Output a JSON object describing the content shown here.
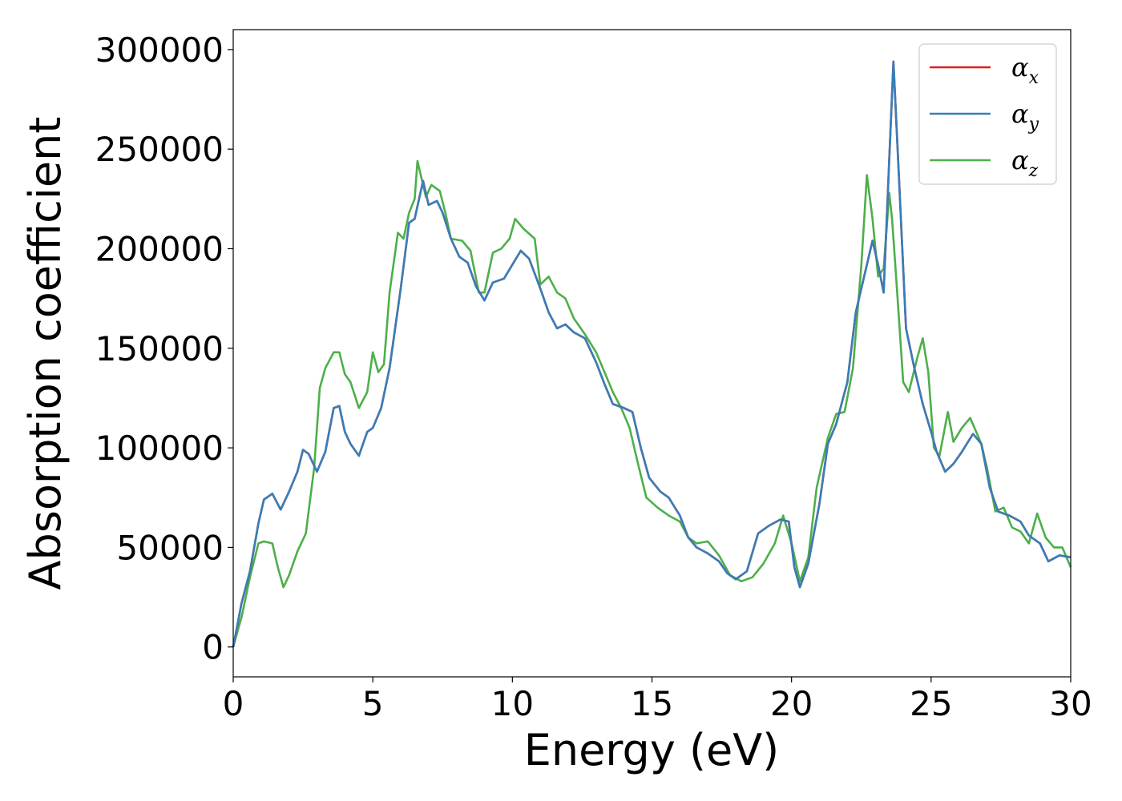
{
  "chart_data": {
    "type": "line",
    "title": "",
    "xlabel": "Energy (eV)",
    "ylabel": "Absorption coefficient",
    "xlim": [
      0,
      30
    ],
    "ylim": [
      -15000,
      310000
    ],
    "xticks": [
      0,
      5,
      10,
      15,
      20,
      25,
      30
    ],
    "yticks": [
      0,
      50000,
      100000,
      150000,
      200000,
      250000,
      300000
    ],
    "grid": false,
    "legend_position": "top-right",
    "series": [
      {
        "name": "α",
        "subscript": "x",
        "color": "#e41a1c",
        "points": [
          [
            0,
            0
          ],
          [
            0.3,
            22000
          ],
          [
            0.6,
            38000
          ],
          [
            0.9,
            62000
          ],
          [
            1.1,
            74000
          ],
          [
            1.4,
            77000
          ],
          [
            1.7,
            69000
          ],
          [
            2.0,
            78000
          ],
          [
            2.3,
            88000
          ],
          [
            2.5,
            99000
          ],
          [
            2.7,
            97000
          ],
          [
            3.0,
            88000
          ],
          [
            3.3,
            98000
          ],
          [
            3.6,
            120000
          ],
          [
            3.8,
            121000
          ],
          [
            4.0,
            108000
          ],
          [
            4.2,
            102000
          ],
          [
            4.5,
            96000
          ],
          [
            4.8,
            108000
          ],
          [
            5.0,
            110000
          ],
          [
            5.3,
            120000
          ],
          [
            5.6,
            140000
          ],
          [
            6.0,
            180000
          ],
          [
            6.3,
            213000
          ],
          [
            6.5,
            215000
          ],
          [
            6.8,
            234000
          ],
          [
            7.0,
            222000
          ],
          [
            7.3,
            224000
          ],
          [
            7.5,
            218000
          ],
          [
            7.8,
            205000
          ],
          [
            8.1,
            196000
          ],
          [
            8.4,
            193000
          ],
          [
            8.7,
            181000
          ],
          [
            9.0,
            174000
          ],
          [
            9.3,
            183000
          ],
          [
            9.7,
            185000
          ],
          [
            10.0,
            192000
          ],
          [
            10.3,
            199000
          ],
          [
            10.6,
            195000
          ],
          [
            11.0,
            180000
          ],
          [
            11.3,
            168000
          ],
          [
            11.6,
            160000
          ],
          [
            11.9,
            162000
          ],
          [
            12.2,
            158000
          ],
          [
            12.6,
            155000
          ],
          [
            13.0,
            143000
          ],
          [
            13.3,
            132000
          ],
          [
            13.6,
            122000
          ],
          [
            14.0,
            120000
          ],
          [
            14.3,
            118000
          ],
          [
            14.6,
            100000
          ],
          [
            14.9,
            85000
          ],
          [
            15.3,
            78000
          ],
          [
            15.6,
            75000
          ],
          [
            16.0,
            66000
          ],
          [
            16.3,
            55000
          ],
          [
            16.6,
            50000
          ],
          [
            17.0,
            47000
          ],
          [
            17.4,
            43000
          ],
          [
            17.7,
            37000
          ],
          [
            18.0,
            34000
          ],
          [
            18.4,
            38000
          ],
          [
            18.8,
            57000
          ],
          [
            19.2,
            61000
          ],
          [
            19.6,
            64000
          ],
          [
            19.9,
            63000
          ],
          [
            20.1,
            40000
          ],
          [
            20.3,
            30000
          ],
          [
            20.6,
            42000
          ],
          [
            21.0,
            72000
          ],
          [
            21.3,
            102000
          ],
          [
            21.6,
            112000
          ],
          [
            22.0,
            133000
          ],
          [
            22.3,
            168000
          ],
          [
            22.6,
            186000
          ],
          [
            22.9,
            204000
          ],
          [
            23.1,
            192000
          ],
          [
            23.3,
            178000
          ],
          [
            23.5,
            245000
          ],
          [
            23.65,
            294000
          ],
          [
            23.85,
            235000
          ],
          [
            24.1,
            160000
          ],
          [
            24.4,
            140000
          ],
          [
            24.7,
            122000
          ],
          [
            25.0,
            108000
          ],
          [
            25.2,
            98000
          ],
          [
            25.5,
            88000
          ],
          [
            25.8,
            92000
          ],
          [
            26.1,
            98000
          ],
          [
            26.5,
            107000
          ],
          [
            26.8,
            102000
          ],
          [
            27.1,
            80000
          ],
          [
            27.4,
            68000
          ],
          [
            27.8,
            66000
          ],
          [
            28.2,
            63000
          ],
          [
            28.5,
            56000
          ],
          [
            28.9,
            52000
          ],
          [
            29.2,
            43000
          ],
          [
            29.6,
            46000
          ],
          [
            30.0,
            45000
          ]
        ]
      },
      {
        "name": "α",
        "subscript": "y",
        "color": "#377eb8",
        "points": [
          [
            0,
            0
          ],
          [
            0.3,
            22000
          ],
          [
            0.6,
            38000
          ],
          [
            0.9,
            62000
          ],
          [
            1.1,
            74000
          ],
          [
            1.4,
            77000
          ],
          [
            1.7,
            69000
          ],
          [
            2.0,
            78000
          ],
          [
            2.3,
            88000
          ],
          [
            2.5,
            99000
          ],
          [
            2.7,
            97000
          ],
          [
            3.0,
            88000
          ],
          [
            3.3,
            98000
          ],
          [
            3.6,
            120000
          ],
          [
            3.8,
            121000
          ],
          [
            4.0,
            108000
          ],
          [
            4.2,
            102000
          ],
          [
            4.5,
            96000
          ],
          [
            4.8,
            108000
          ],
          [
            5.0,
            110000
          ],
          [
            5.3,
            120000
          ],
          [
            5.6,
            140000
          ],
          [
            6.0,
            180000
          ],
          [
            6.3,
            213000
          ],
          [
            6.5,
            215000
          ],
          [
            6.8,
            234000
          ],
          [
            7.0,
            222000
          ],
          [
            7.3,
            224000
          ],
          [
            7.5,
            218000
          ],
          [
            7.8,
            205000
          ],
          [
            8.1,
            196000
          ],
          [
            8.4,
            193000
          ],
          [
            8.7,
            181000
          ],
          [
            9.0,
            174000
          ],
          [
            9.3,
            183000
          ],
          [
            9.7,
            185000
          ],
          [
            10.0,
            192000
          ],
          [
            10.3,
            199000
          ],
          [
            10.6,
            195000
          ],
          [
            11.0,
            180000
          ],
          [
            11.3,
            168000
          ],
          [
            11.6,
            160000
          ],
          [
            11.9,
            162000
          ],
          [
            12.2,
            158000
          ],
          [
            12.6,
            155000
          ],
          [
            13.0,
            143000
          ],
          [
            13.3,
            132000
          ],
          [
            13.6,
            122000
          ],
          [
            14.0,
            120000
          ],
          [
            14.3,
            118000
          ],
          [
            14.6,
            100000
          ],
          [
            14.9,
            85000
          ],
          [
            15.3,
            78000
          ],
          [
            15.6,
            75000
          ],
          [
            16.0,
            66000
          ],
          [
            16.3,
            55000
          ],
          [
            16.6,
            50000
          ],
          [
            17.0,
            47000
          ],
          [
            17.4,
            43000
          ],
          [
            17.7,
            37000
          ],
          [
            18.0,
            34000
          ],
          [
            18.4,
            38000
          ],
          [
            18.8,
            57000
          ],
          [
            19.2,
            61000
          ],
          [
            19.6,
            64000
          ],
          [
            19.9,
            63000
          ],
          [
            20.1,
            40000
          ],
          [
            20.3,
            30000
          ],
          [
            20.6,
            42000
          ],
          [
            21.0,
            72000
          ],
          [
            21.3,
            102000
          ],
          [
            21.6,
            112000
          ],
          [
            22.0,
            133000
          ],
          [
            22.3,
            168000
          ],
          [
            22.6,
            186000
          ],
          [
            22.9,
            204000
          ],
          [
            23.1,
            192000
          ],
          [
            23.3,
            178000
          ],
          [
            23.5,
            245000
          ],
          [
            23.65,
            294000
          ],
          [
            23.85,
            235000
          ],
          [
            24.1,
            160000
          ],
          [
            24.4,
            140000
          ],
          [
            24.7,
            122000
          ],
          [
            25.0,
            108000
          ],
          [
            25.2,
            98000
          ],
          [
            25.5,
            88000
          ],
          [
            25.8,
            92000
          ],
          [
            26.1,
            98000
          ],
          [
            26.5,
            107000
          ],
          [
            26.8,
            102000
          ],
          [
            27.1,
            80000
          ],
          [
            27.4,
            68000
          ],
          [
            27.8,
            66000
          ],
          [
            28.2,
            63000
          ],
          [
            28.5,
            56000
          ],
          [
            28.9,
            52000
          ],
          [
            29.2,
            43000
          ],
          [
            29.6,
            46000
          ],
          [
            30.0,
            45000
          ]
        ]
      },
      {
        "name": "α",
        "subscript": "z",
        "color": "#4daf4a",
        "points": [
          [
            0,
            0
          ],
          [
            0.3,
            15000
          ],
          [
            0.6,
            35000
          ],
          [
            0.9,
            52000
          ],
          [
            1.1,
            53000
          ],
          [
            1.4,
            52000
          ],
          [
            1.6,
            40000
          ],
          [
            1.8,
            30000
          ],
          [
            2.0,
            36000
          ],
          [
            2.3,
            48000
          ],
          [
            2.6,
            57000
          ],
          [
            2.9,
            90000
          ],
          [
            3.1,
            130000
          ],
          [
            3.3,
            140000
          ],
          [
            3.6,
            148000
          ],
          [
            3.8,
            148000
          ],
          [
            4.0,
            137000
          ],
          [
            4.2,
            133000
          ],
          [
            4.5,
            120000
          ],
          [
            4.8,
            128000
          ],
          [
            5.0,
            148000
          ],
          [
            5.2,
            138000
          ],
          [
            5.4,
            142000
          ],
          [
            5.6,
            178000
          ],
          [
            5.9,
            208000
          ],
          [
            6.1,
            205000
          ],
          [
            6.3,
            218000
          ],
          [
            6.5,
            225000
          ],
          [
            6.6,
            244000
          ],
          [
            6.9,
            226000
          ],
          [
            7.1,
            232000
          ],
          [
            7.4,
            229000
          ],
          [
            7.6,
            218000
          ],
          [
            7.8,
            205000
          ],
          [
            8.2,
            204000
          ],
          [
            8.5,
            199000
          ],
          [
            8.8,
            178000
          ],
          [
            9.0,
            178000
          ],
          [
            9.3,
            198000
          ],
          [
            9.6,
            200000
          ],
          [
            9.9,
            205000
          ],
          [
            10.1,
            215000
          ],
          [
            10.4,
            210000
          ],
          [
            10.8,
            205000
          ],
          [
            11.0,
            182000
          ],
          [
            11.3,
            186000
          ],
          [
            11.6,
            178000
          ],
          [
            11.9,
            175000
          ],
          [
            12.2,
            165000
          ],
          [
            12.6,
            157000
          ],
          [
            13.0,
            148000
          ],
          [
            13.3,
            138000
          ],
          [
            13.6,
            128000
          ],
          [
            13.9,
            120000
          ],
          [
            14.2,
            110000
          ],
          [
            14.5,
            92000
          ],
          [
            14.8,
            75000
          ],
          [
            15.2,
            70000
          ],
          [
            15.6,
            66000
          ],
          [
            16.0,
            63000
          ],
          [
            16.3,
            55000
          ],
          [
            16.6,
            52000
          ],
          [
            17.0,
            53000
          ],
          [
            17.4,
            46000
          ],
          [
            17.8,
            36000
          ],
          [
            18.2,
            33000
          ],
          [
            18.6,
            35000
          ],
          [
            19.0,
            42000
          ],
          [
            19.4,
            52000
          ],
          [
            19.7,
            66000
          ],
          [
            20.0,
            52000
          ],
          [
            20.3,
            33000
          ],
          [
            20.6,
            45000
          ],
          [
            20.9,
            80000
          ],
          [
            21.3,
            105000
          ],
          [
            21.6,
            117000
          ],
          [
            21.9,
            118000
          ],
          [
            22.2,
            140000
          ],
          [
            22.5,
            192000
          ],
          [
            22.7,
            237000
          ],
          [
            22.9,
            215000
          ],
          [
            23.1,
            186000
          ],
          [
            23.3,
            190000
          ],
          [
            23.5,
            228000
          ],
          [
            23.6,
            215000
          ],
          [
            23.8,
            175000
          ],
          [
            24.0,
            133000
          ],
          [
            24.2,
            128000
          ],
          [
            24.5,
            145000
          ],
          [
            24.7,
            155000
          ],
          [
            24.9,
            138000
          ],
          [
            25.1,
            100000
          ],
          [
            25.3,
            96000
          ],
          [
            25.6,
            118000
          ],
          [
            25.8,
            103000
          ],
          [
            26.1,
            110000
          ],
          [
            26.4,
            115000
          ],
          [
            26.8,
            102000
          ],
          [
            27.0,
            90000
          ],
          [
            27.3,
            68000
          ],
          [
            27.6,
            70000
          ],
          [
            27.9,
            60000
          ],
          [
            28.2,
            58000
          ],
          [
            28.5,
            52000
          ],
          [
            28.8,
            67000
          ],
          [
            29.1,
            55000
          ],
          [
            29.4,
            50000
          ],
          [
            29.7,
            50000
          ],
          [
            30.0,
            40000
          ]
        ]
      }
    ]
  }
}
